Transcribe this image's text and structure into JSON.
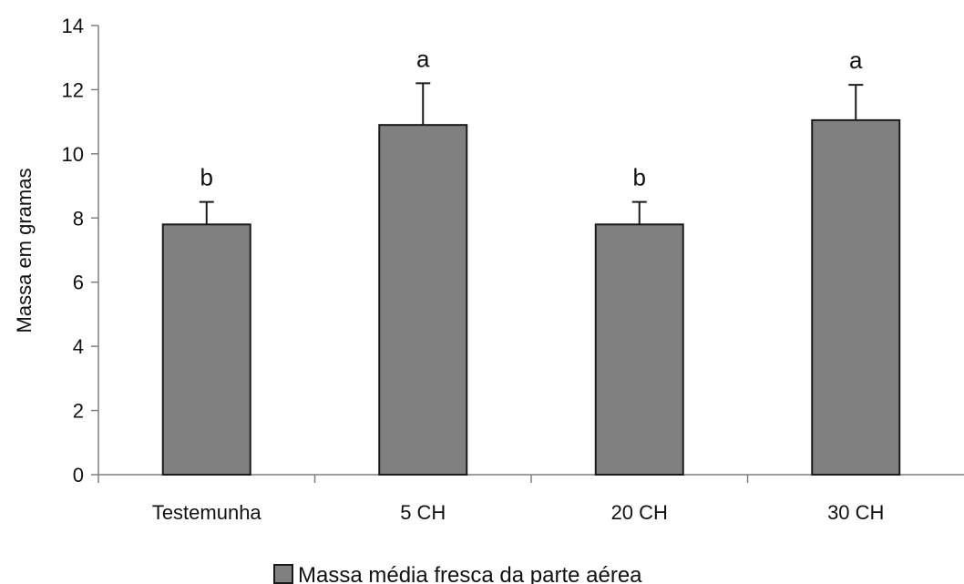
{
  "chart_data": {
    "type": "bar",
    "categories": [
      "Testemunha",
      "5 CH",
      "20 CH",
      "30 CH"
    ],
    "series": [
      {
        "name": "Massa média fresca da parte aérea",
        "values": [
          7.8,
          10.9,
          7.8,
          11.05
        ],
        "error": [
          0.7,
          1.3,
          0.7,
          1.1
        ],
        "significance": [
          "b",
          "a",
          "b",
          "a"
        ]
      }
    ],
    "ylabel": "Massa em gramas",
    "xlabel": "",
    "ylim": [
      0,
      14
    ],
    "yticks": [
      0,
      2,
      4,
      6,
      8,
      10,
      12,
      14
    ],
    "legend_position": "bottom-center",
    "grid": false,
    "colors": {
      "bar_fill": "#808080",
      "bar_stroke": "#1a1a1a",
      "axis": "#7f7f7f",
      "error_bar": "#1a1a1a"
    }
  }
}
